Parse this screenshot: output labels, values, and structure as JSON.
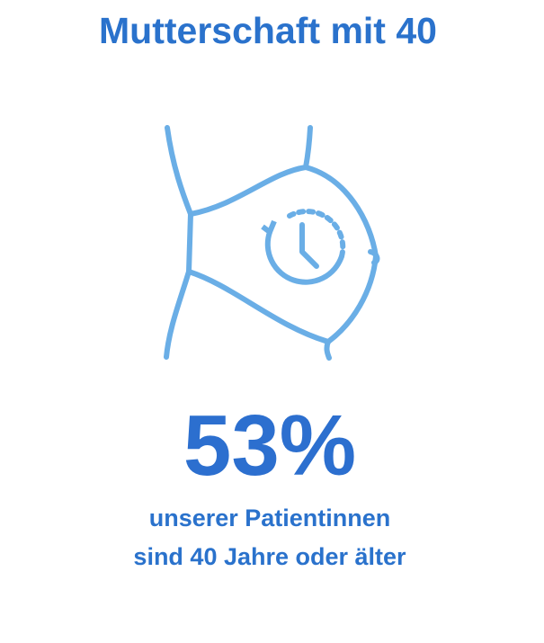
{
  "title": "Mutterschaft mit 40",
  "stat": "53%",
  "caption": [
    "unserer Patientinnen",
    "sind 40 Jahre oder älter"
  ]
}
